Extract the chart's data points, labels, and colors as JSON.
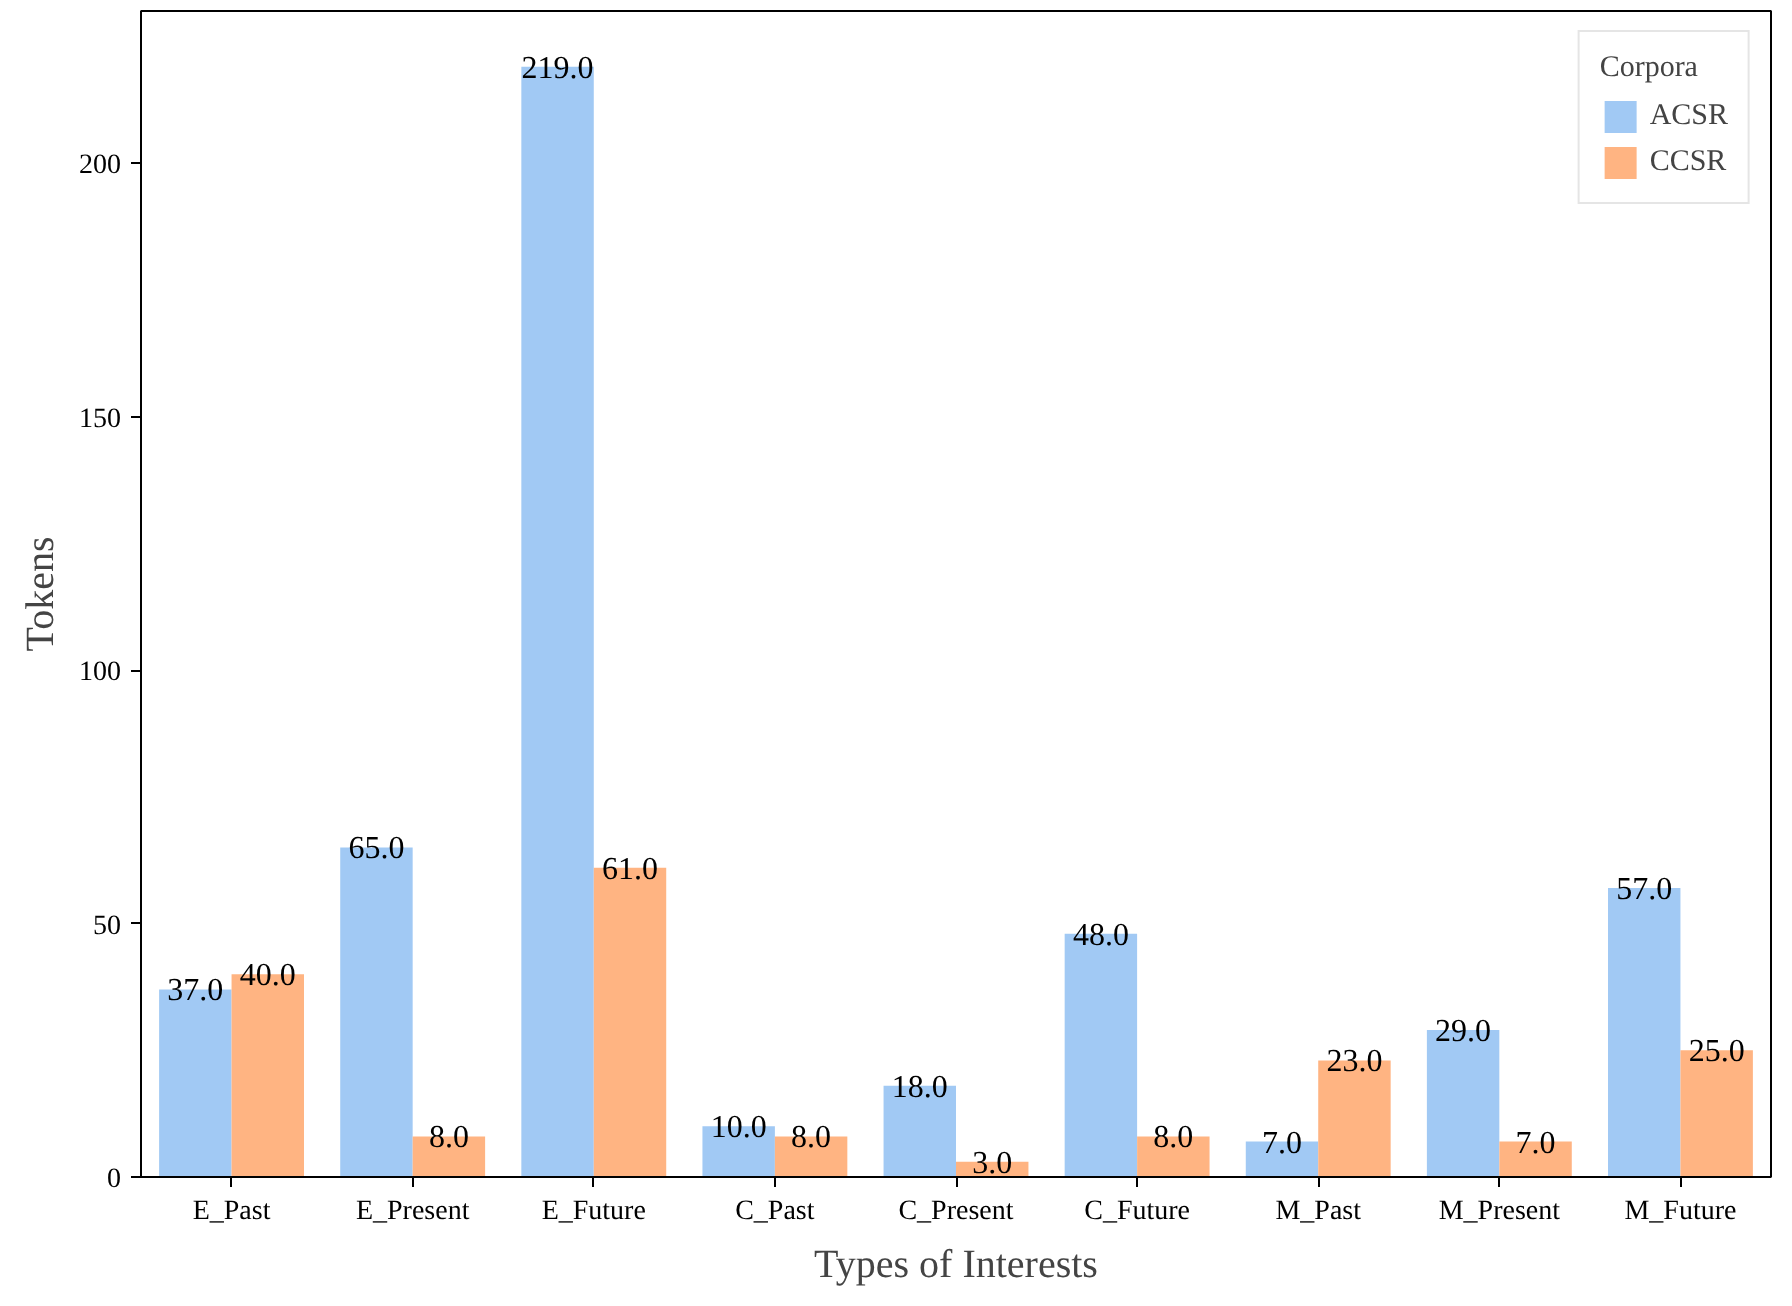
{
  "chart_data": {
    "type": "bar",
    "xlabel": "Types of Interests",
    "ylabel": "Tokens",
    "legend_title": "Corpora",
    "categories": [
      "E_Past",
      "E_Present",
      "E_Future",
      "C_Past",
      "C_Present",
      "C_Future",
      "M_Past",
      "M_Present",
      "M_Future"
    ],
    "series": [
      {
        "name": "ACSR",
        "color": "#a1c9f4",
        "values": [
          37,
          65,
          219,
          10,
          18,
          48,
          7,
          29,
          57
        ],
        "value_labels": [
          "37.0",
          "65.0",
          "219.0",
          "10.0",
          "18.0",
          "48.0",
          "7.0",
          "29.0",
          "57.0"
        ]
      },
      {
        "name": "CCSR",
        "color": "#ffb482",
        "values": [
          40,
          8,
          61,
          8,
          3,
          8,
          23,
          7,
          25
        ],
        "value_labels": [
          "40.0",
          "8.0",
          "61.0",
          "8.0",
          "3.0",
          "8.0",
          "23.0",
          "7.0",
          "25.0"
        ]
      }
    ],
    "ylim": [
      0,
      230
    ],
    "yticks": [
      0,
      50,
      100,
      150,
      200
    ],
    "legend": "top right",
    "grid": false
  }
}
